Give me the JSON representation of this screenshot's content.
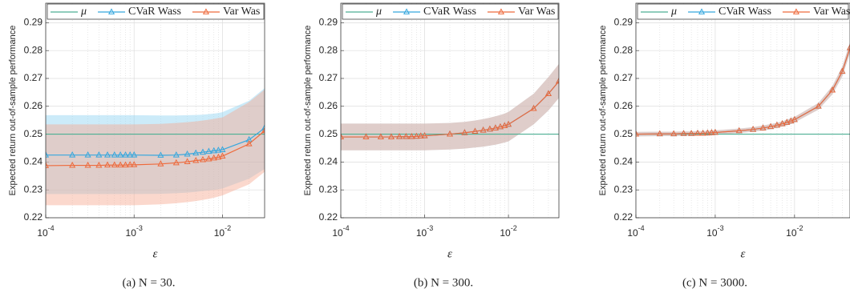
{
  "chart_data": [
    {
      "type": "line",
      "caption": "(a) N = 30.",
      "xlabel": "ε",
      "ylabel": "Expected return out-of-sample performance",
      "xscale": "log",
      "grid": true,
      "legend": "top",
      "xlim": [
        0.0001,
        0.03
      ],
      "ylim": [
        0.22,
        0.297
      ],
      "xticks": [
        {
          "value": 0.0001,
          "label": "10",
          "exponent": "-4"
        },
        {
          "value": 0.001,
          "label": "10",
          "exponent": "-3"
        },
        {
          "value": 0.01,
          "label": "10",
          "exponent": "-2"
        }
      ],
      "yticks": [
        0.22,
        0.23,
        0.24,
        0.25,
        0.26,
        0.27,
        0.28,
        0.29
      ],
      "x": [
        0.0001,
        0.0002,
        0.0003,
        0.0004,
        0.0005,
        0.0006,
        0.0007,
        0.0008,
        0.0009,
        0.001,
        0.002,
        0.003,
        0.004,
        0.005,
        0.006,
        0.007,
        0.008,
        0.009,
        0.01,
        0.02,
        0.03
      ],
      "series": [
        {
          "name": "μ",
          "color": "#4daf93",
          "x": [
            0.0001,
            0.03
          ],
          "values": [
            0.25,
            0.25
          ]
        },
        {
          "name": "CVaR Wass",
          "color": "#35a7de",
          "band_color": "#8fd3f2",
          "marker": "triangle",
          "values": [
            0.2425,
            0.2425,
            0.2425,
            0.2425,
            0.2425,
            0.2425,
            0.2425,
            0.2425,
            0.2425,
            0.2425,
            0.2424,
            0.2425,
            0.2428,
            0.2432,
            0.2435,
            0.2438,
            0.244,
            0.2442,
            0.2444,
            0.248,
            0.2522
          ],
          "band_upper": [
            0.2568,
            0.2568,
            0.2568,
            0.2568,
            0.2568,
            0.2568,
            0.2568,
            0.2568,
            0.2568,
            0.2568,
            0.2567,
            0.2567,
            0.2568,
            0.2569,
            0.257,
            0.2572,
            0.2574,
            0.2576,
            0.2579,
            0.262,
            0.2665
          ],
          "band_lower": [
            0.2285,
            0.2285,
            0.2285,
            0.2285,
            0.2285,
            0.2285,
            0.2285,
            0.2285,
            0.2285,
            0.2285,
            0.2286,
            0.2288,
            0.229,
            0.2293,
            0.2296,
            0.2298,
            0.23,
            0.2302,
            0.2305,
            0.234,
            0.2375
          ]
        },
        {
          "name": "Var Was",
          "color": "#ee6a3c",
          "band_color": "#f7a890",
          "marker": "triangle",
          "values": [
            0.2387,
            0.2388,
            0.2388,
            0.2388,
            0.2389,
            0.2389,
            0.2389,
            0.2389,
            0.239,
            0.239,
            0.2393,
            0.2397,
            0.2401,
            0.2405,
            0.2408,
            0.2411,
            0.2414,
            0.2417,
            0.2421,
            0.2465,
            0.2512
          ],
          "band_upper": [
            0.2535,
            0.2535,
            0.2535,
            0.2535,
            0.2535,
            0.2535,
            0.2535,
            0.2535,
            0.2535,
            0.2535,
            0.2537,
            0.254,
            0.2543,
            0.2546,
            0.2549,
            0.2552,
            0.2555,
            0.2558,
            0.256,
            0.2615,
            0.266
          ],
          "band_lower": [
            0.2245,
            0.2245,
            0.2245,
            0.2245,
            0.2245,
            0.2245,
            0.2245,
            0.2245,
            0.2245,
            0.2245,
            0.2248,
            0.2252,
            0.2256,
            0.226,
            0.2264,
            0.2268,
            0.2272,
            0.2276,
            0.228,
            0.232,
            0.2365
          ]
        }
      ]
    },
    {
      "type": "line",
      "caption": "(b) N = 300.",
      "xlabel": "ε",
      "ylabel": "Expected return out-of-sample performance",
      "xscale": "log",
      "grid": true,
      "legend": "top",
      "xlim": [
        0.0001,
        0.04
      ],
      "ylim": [
        0.22,
        0.297
      ],
      "xticks": [
        {
          "value": 0.0001,
          "label": "10",
          "exponent": "-4"
        },
        {
          "value": 0.001,
          "label": "10",
          "exponent": "-3"
        },
        {
          "value": 0.01,
          "label": "10",
          "exponent": "-2"
        }
      ],
      "yticks": [
        0.22,
        0.23,
        0.24,
        0.25,
        0.26,
        0.27,
        0.28,
        0.29
      ],
      "x": [
        0.0001,
        0.0002,
        0.0003,
        0.0004,
        0.0005,
        0.0006,
        0.0007,
        0.0008,
        0.0009,
        0.001,
        0.002,
        0.003,
        0.004,
        0.005,
        0.006,
        0.007,
        0.008,
        0.009,
        0.01,
        0.02,
        0.03,
        0.04
      ],
      "series": [
        {
          "name": "μ",
          "color": "#4daf93",
          "x": [
            0.0001,
            0.04
          ],
          "values": [
            0.25,
            0.25
          ]
        },
        {
          "name": "CVaR Wass",
          "color": "#35a7de",
          "band_color": "#8fd3f2",
          "marker": "triangle",
          "values": [
            0.249,
            0.249,
            0.249,
            0.249,
            0.2491,
            0.2491,
            0.2491,
            0.2492,
            0.2493,
            0.2494,
            0.25,
            0.2505,
            0.251,
            0.2514,
            0.2518,
            0.2522,
            0.2526,
            0.253,
            0.2535,
            0.2592,
            0.2645,
            0.269
          ],
          "band_upper": [
            0.2538,
            0.2538,
            0.2538,
            0.2538,
            0.2538,
            0.2538,
            0.2538,
            0.2538,
            0.2538,
            0.2538,
            0.254,
            0.2544,
            0.2549,
            0.2554,
            0.2559,
            0.2564,
            0.2569,
            0.2574,
            0.258,
            0.2645,
            0.2705,
            0.2752
          ],
          "band_lower": [
            0.2442,
            0.2442,
            0.2442,
            0.2442,
            0.2442,
            0.2442,
            0.2442,
            0.2442,
            0.2442,
            0.2442,
            0.2445,
            0.2448,
            0.2452,
            0.2455,
            0.2459,
            0.2462,
            0.2466,
            0.247,
            0.2474,
            0.2535,
            0.2585,
            0.263
          ]
        },
        {
          "name": "Var Was",
          "color": "#ee6a3c",
          "band_color": "#f7a890",
          "marker": "triangle",
          "values": [
            0.249,
            0.249,
            0.249,
            0.249,
            0.2491,
            0.2491,
            0.2491,
            0.2492,
            0.2493,
            0.2494,
            0.25,
            0.2505,
            0.251,
            0.2514,
            0.2518,
            0.2522,
            0.2526,
            0.253,
            0.2535,
            0.2592,
            0.2645,
            0.269
          ],
          "band_upper": [
            0.2538,
            0.2538,
            0.2538,
            0.2538,
            0.2538,
            0.2538,
            0.2538,
            0.2538,
            0.2538,
            0.2538,
            0.254,
            0.2544,
            0.2549,
            0.2554,
            0.2559,
            0.2564,
            0.2569,
            0.2574,
            0.258,
            0.2645,
            0.2705,
            0.2752
          ],
          "band_lower": [
            0.2442,
            0.2442,
            0.2442,
            0.2442,
            0.2442,
            0.2442,
            0.2442,
            0.2442,
            0.2442,
            0.2442,
            0.2445,
            0.2448,
            0.2452,
            0.2455,
            0.2459,
            0.2462,
            0.2466,
            0.247,
            0.2474,
            0.2535,
            0.2585,
            0.263
          ]
        }
      ]
    },
    {
      "type": "line",
      "caption": "(c) N = 3000.",
      "xlabel": "ε",
      "ylabel": "Expected return out-of-sample performance",
      "xscale": "log",
      "grid": true,
      "legend": "top",
      "xlim": [
        0.0001,
        0.05
      ],
      "ylim": [
        0.22,
        0.297
      ],
      "xticks": [
        {
          "value": 0.0001,
          "label": "10",
          "exponent": "-4"
        },
        {
          "value": 0.001,
          "label": "10",
          "exponent": "-3"
        },
        {
          "value": 0.01,
          "label": "10",
          "exponent": "-2"
        }
      ],
      "yticks": [
        0.22,
        0.23,
        0.24,
        0.25,
        0.26,
        0.27,
        0.28,
        0.29
      ],
      "x": [
        0.0001,
        0.0002,
        0.0003,
        0.0004,
        0.0005,
        0.0006,
        0.0007,
        0.0008,
        0.0009,
        0.001,
        0.002,
        0.003,
        0.004,
        0.005,
        0.006,
        0.007,
        0.008,
        0.009,
        0.01,
        0.02,
        0.03,
        0.04,
        0.05
      ],
      "series": [
        {
          "name": "μ",
          "color": "#4daf93",
          "x": [
            0.0001,
            0.05
          ],
          "values": [
            0.25,
            0.25
          ]
        },
        {
          "name": "CVaR Wass",
          "color": "#35a7de",
          "band_color": "#8fd3f2",
          "marker": "triangle",
          "values": [
            0.25,
            0.2501,
            0.2501,
            0.2502,
            0.2502,
            0.2503,
            0.2503,
            0.2504,
            0.2505,
            0.2506,
            0.2512,
            0.2517,
            0.2522,
            0.2527,
            0.2532,
            0.2537,
            0.2542,
            0.2547,
            0.2552,
            0.26,
            0.2658,
            0.2725,
            0.281
          ],
          "band_upper": [
            0.2508,
            0.2509,
            0.2509,
            0.251,
            0.251,
            0.2511,
            0.2511,
            0.2512,
            0.2513,
            0.2514,
            0.252,
            0.2525,
            0.2531,
            0.2536,
            0.2541,
            0.2546,
            0.2552,
            0.2557,
            0.2562,
            0.2612,
            0.2673,
            0.2743,
            0.283
          ],
          "band_lower": [
            0.2492,
            0.2493,
            0.2493,
            0.2494,
            0.2494,
            0.2495,
            0.2495,
            0.2496,
            0.2497,
            0.2498,
            0.2504,
            0.2509,
            0.2513,
            0.2518,
            0.2523,
            0.2528,
            0.2532,
            0.2537,
            0.2542,
            0.2588,
            0.2643,
            0.2707,
            0.279
          ]
        },
        {
          "name": "Var Was",
          "color": "#ee6a3c",
          "band_color": "#f7a890",
          "marker": "triangle",
          "values": [
            0.25,
            0.2501,
            0.2501,
            0.2502,
            0.2502,
            0.2503,
            0.2503,
            0.2504,
            0.2505,
            0.2506,
            0.2512,
            0.2517,
            0.2522,
            0.2527,
            0.2532,
            0.2537,
            0.2542,
            0.2547,
            0.2552,
            0.26,
            0.2658,
            0.2725,
            0.281
          ],
          "band_upper": [
            0.2508,
            0.2509,
            0.2509,
            0.251,
            0.251,
            0.2511,
            0.2511,
            0.2512,
            0.2513,
            0.2514,
            0.252,
            0.2525,
            0.2531,
            0.2536,
            0.2541,
            0.2546,
            0.2552,
            0.2557,
            0.2562,
            0.2612,
            0.2673,
            0.2743,
            0.283
          ],
          "band_lower": [
            0.2492,
            0.2493,
            0.2493,
            0.2494,
            0.2494,
            0.2495,
            0.2495,
            0.2496,
            0.2497,
            0.2498,
            0.2504,
            0.2509,
            0.2513,
            0.2518,
            0.2523,
            0.2528,
            0.2532,
            0.2537,
            0.2542,
            0.2588,
            0.2643,
            0.2707,
            0.279
          ]
        }
      ]
    }
  ]
}
